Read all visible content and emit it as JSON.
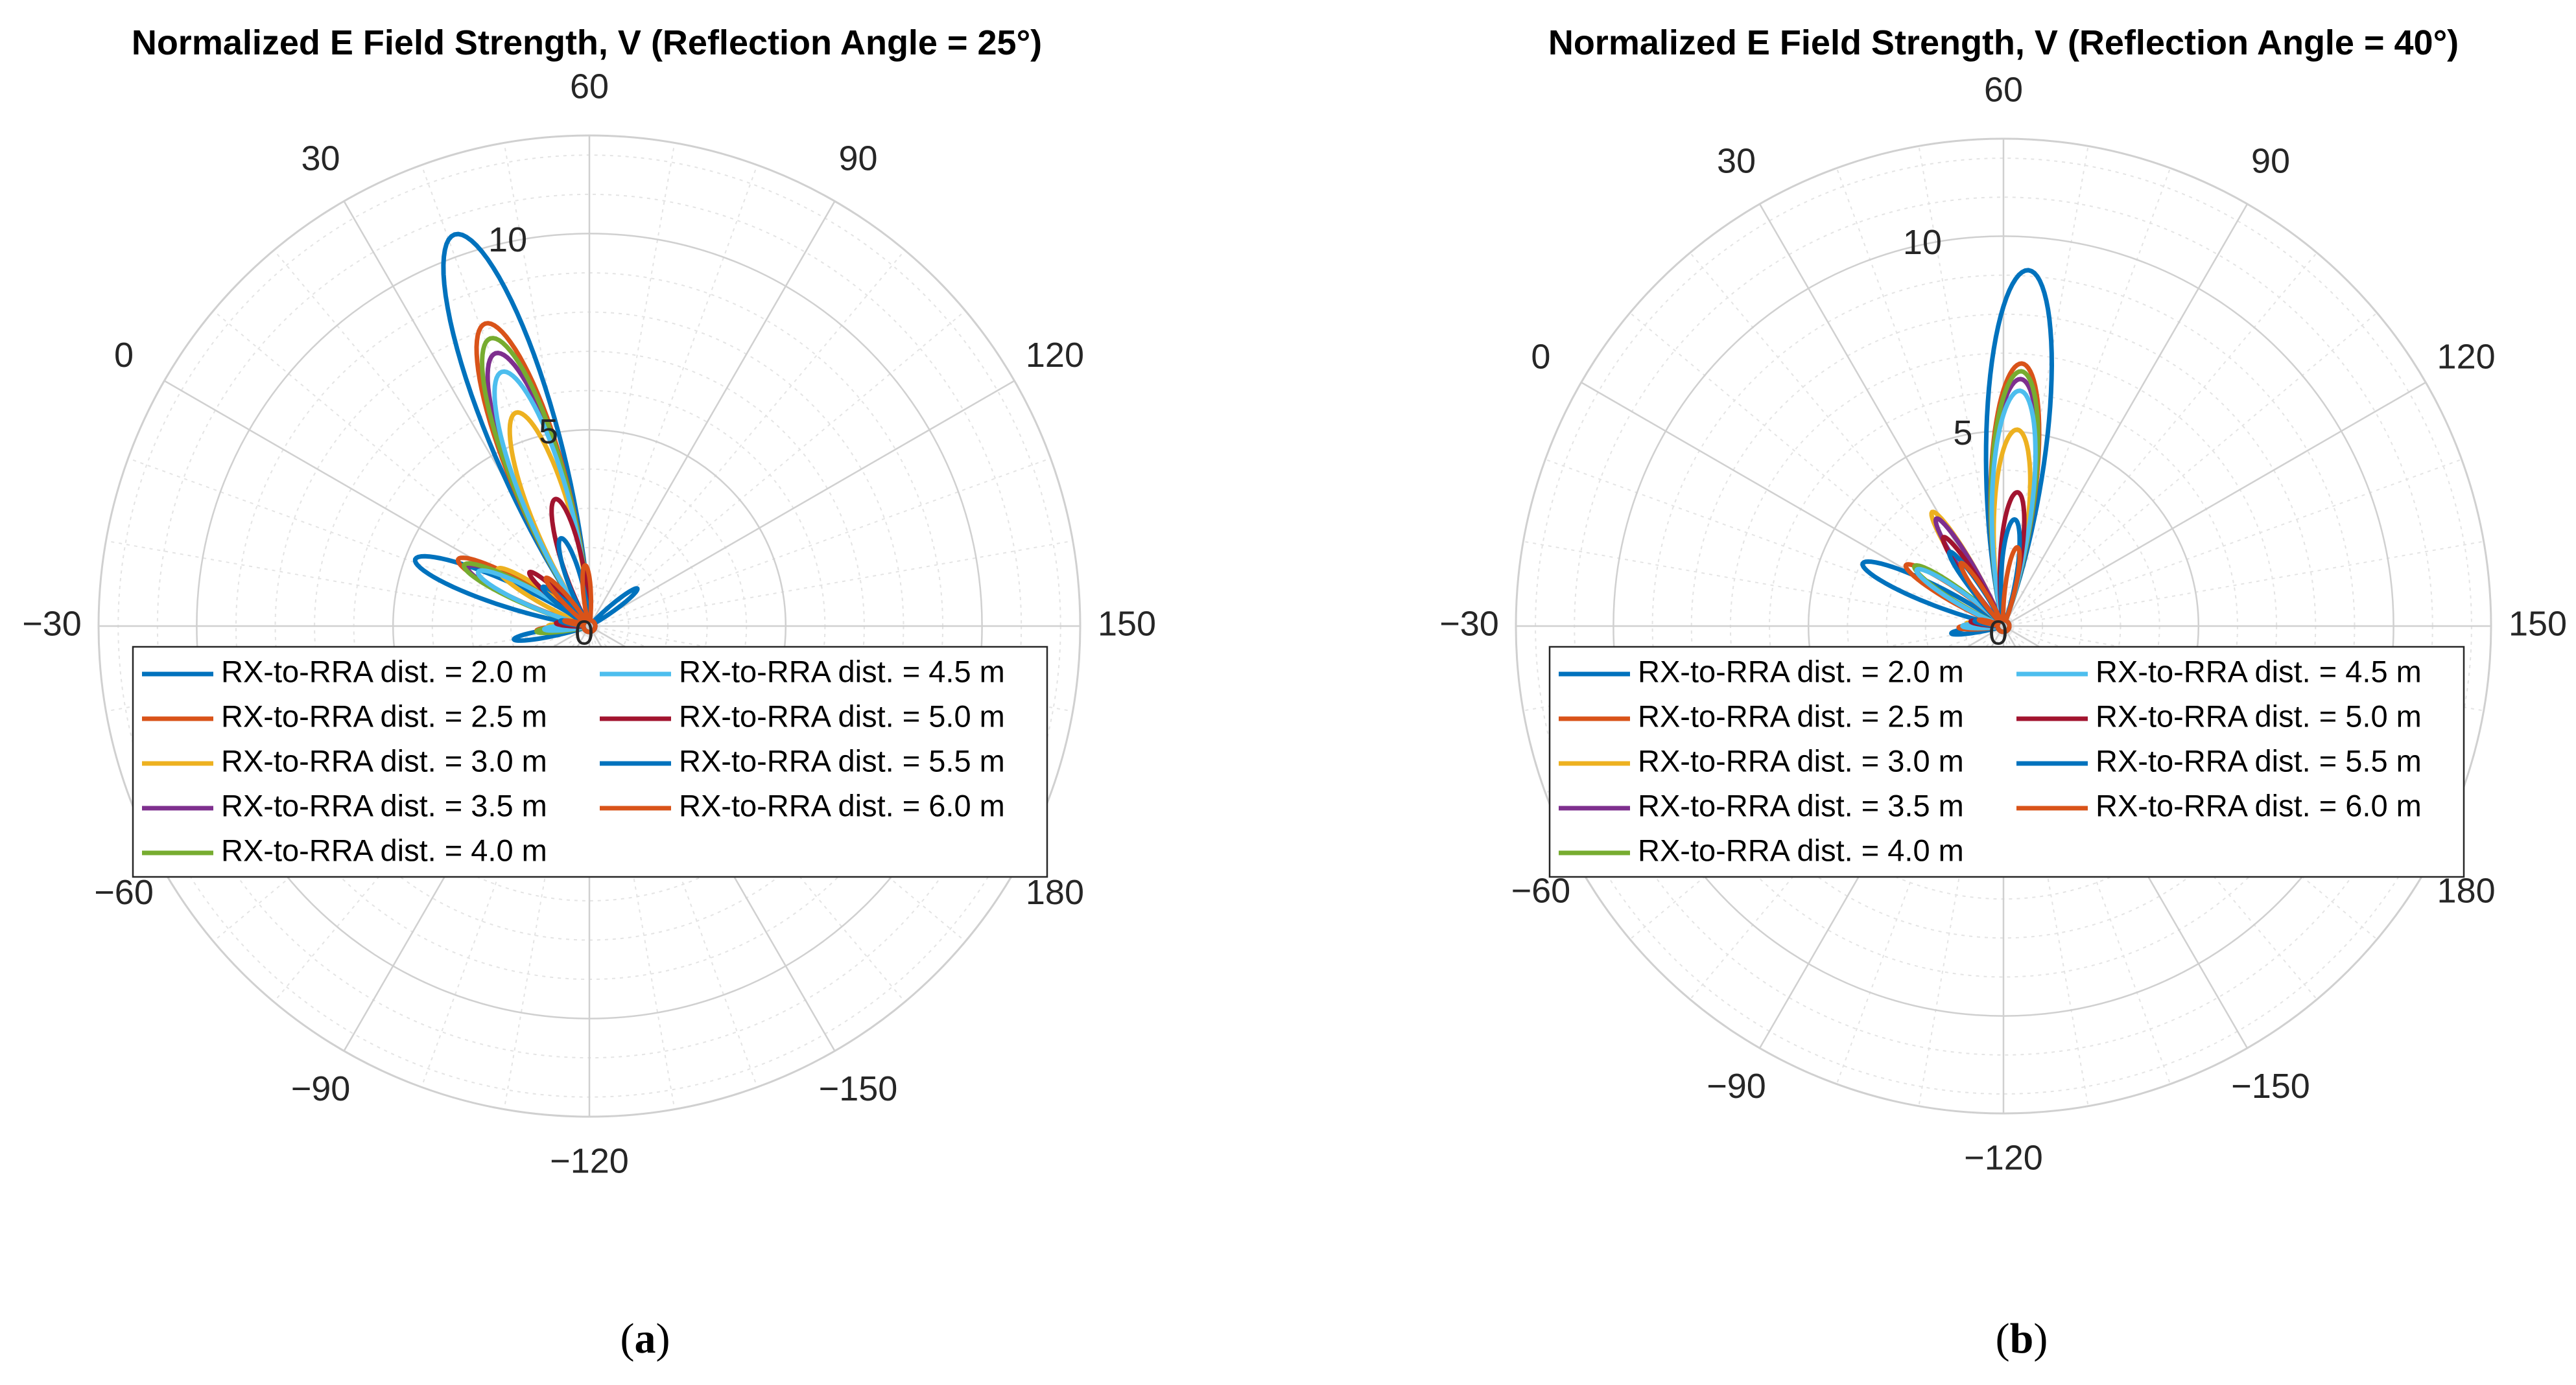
{
  "figure": {
    "panels": [
      {
        "caption_letter": "a"
      },
      {
        "caption_letter": "b"
      }
    ]
  },
  "chart_data": [
    {
      "type": "polar-line",
      "title": "Normalized E Field Strength, V (Reflection Angle = 25°)",
      "angle_ticks": [
        30,
        60,
        90,
        120,
        150,
        180,
        -150,
        -120,
        -90,
        -60,
        -30,
        0
      ],
      "r_ticks": [
        0,
        5,
        10
      ],
      "r_lim": [
        0,
        12.5
      ],
      "angle_direction": "clockwise",
      "zero_direction": "up-left",
      "legend_position": "center",
      "series": [
        {
          "name": "RX-to-RRA dist. = 2.0 m",
          "color": "#0072BD",
          "lobes": [
            {
              "angle": 41,
              "peak": 10.4,
              "width": 19
            },
            {
              "angle": -9,
              "peak": 4.6,
              "width": 15
            },
            {
              "angle": -40,
              "peak": 1.8,
              "width": 10
            },
            {
              "angle": 112,
              "peak": 1.4,
              "width": 11
            }
          ]
        },
        {
          "name": "RX-to-RRA dist. = 2.5 m",
          "color": "#D95319",
          "lobes": [
            {
              "angle": 41,
              "peak": 8.0,
              "width": 19
            },
            {
              "angle": -3,
              "peak": 3.6,
              "width": 14
            },
            {
              "angle": -35,
              "peak": 1.2,
              "width": 10
            }
          ]
        },
        {
          "name": "RX-to-RRA dist. = 3.0 m",
          "color": "#EDB120",
          "lobes": [
            {
              "angle": 41,
              "peak": 5.6,
              "width": 19
            },
            {
              "angle": 2,
              "peak": 2.6,
              "width": 13
            },
            {
              "angle": -30,
              "peak": 0.9,
              "width": 10
            }
          ]
        },
        {
          "name": "RX-to-RRA dist. = 3.5 m",
          "color": "#7E2F8E",
          "lobes": [
            {
              "angle": 41,
              "peak": 7.2,
              "width": 19
            },
            {
              "angle": -4,
              "peak": 3.3,
              "width": 14
            },
            {
              "angle": -36,
              "peak": 1.1,
              "width": 10
            }
          ]
        },
        {
          "name": "RX-to-RRA dist. = 4.0 m",
          "color": "#77AC30",
          "lobes": [
            {
              "angle": 41,
              "peak": 7.6,
              "width": 19
            },
            {
              "angle": -4,
              "peak": 3.4,
              "width": 14
            },
            {
              "angle": -36,
              "peak": 1.2,
              "width": 10
            }
          ]
        },
        {
          "name": "RX-to-RRA dist. = 4.5 m",
          "color": "#4DBEEE",
          "lobes": [
            {
              "angle": 41,
              "peak": 6.7,
              "width": 19
            },
            {
              "angle": -4,
              "peak": 3.0,
              "width": 14
            },
            {
              "angle": -34,
              "peak": 1.0,
              "width": 10
            }
          ]
        },
        {
          "name": "RX-to-RRA dist. = 5.0 m",
          "color": "#A2142F",
          "lobes": [
            {
              "angle": 45,
              "peak": 3.2,
              "width": 17
            },
            {
              "angle": 12,
              "peak": 1.9,
              "width": 12
            },
            {
              "angle": -25,
              "peak": 0.7,
              "width": 10
            }
          ]
        },
        {
          "name": "RX-to-RRA dist. = 5.5 m",
          "color": "#0072BD",
          "lobes": [
            {
              "angle": 42,
              "peak": 2.2,
              "width": 16
            },
            {
              "angle": 10,
              "peak": 1.4,
              "width": 12
            },
            {
              "angle": -20,
              "peak": 0.6,
              "width": 10
            }
          ]
        },
        {
          "name": "RX-to-RRA dist. = 6.0 m",
          "color": "#D95319",
          "lobes": [
            {
              "angle": 56,
              "peak": 1.4,
              "width": 13
            },
            {
              "angle": 18,
              "peak": 1.5,
              "width": 12
            },
            {
              "angle": -18,
              "peak": 0.5,
              "width": 9
            }
          ]
        }
      ]
    },
    {
      "type": "polar-line",
      "title": "Normalized E Field Strength, V (Reflection Angle = 40°)",
      "angle_ticks": [
        30,
        60,
        90,
        120,
        150,
        180,
        -150,
        -120,
        -90,
        -60,
        -30,
        0
      ],
      "r_ticks": [
        0,
        5,
        10
      ],
      "r_lim": [
        0,
        12.5
      ],
      "angle_direction": "clockwise",
      "zero_direction": "up-left",
      "legend_position": "center",
      "series": [
        {
          "name": "RX-to-RRA dist. = 2.0 m",
          "color": "#0072BD",
          "lobes": [
            {
              "angle": 64,
              "peak": 9.0,
              "width": 19
            },
            {
              "angle": -6,
              "peak": 3.8,
              "width": 14
            },
            {
              "angle": -38,
              "peak": 1.2,
              "width": 10
            }
          ]
        },
        {
          "name": "RX-to-RRA dist. = 2.5 m",
          "color": "#D95319",
          "lobes": [
            {
              "angle": 64,
              "peak": 6.6,
              "width": 19
            },
            {
              "angle": 2,
              "peak": 2.8,
              "width": 13
            },
            {
              "angle": -32,
              "peak": 1.0,
              "width": 10
            }
          ]
        },
        {
          "name": "RX-to-RRA dist. = 3.0 m",
          "color": "#EDB120",
          "lobes": [
            {
              "angle": 64,
              "peak": 4.9,
              "width": 19
            },
            {
              "angle": 28,
              "peak": 3.3,
              "width": 11
            },
            {
              "angle": -26,
              "peak": 0.8,
              "width": 10
            }
          ]
        },
        {
          "name": "RX-to-RRA dist. = 3.5 m",
          "color": "#7E2F8E",
          "lobes": [
            {
              "angle": 64,
              "peak": 6.2,
              "width": 19
            },
            {
              "angle": 28,
              "peak": 3.1,
              "width": 11
            },
            {
              "angle": -30,
              "peak": 0.9,
              "width": 10
            }
          ]
        },
        {
          "name": "RX-to-RRA dist. = 4.0 m",
          "color": "#77AC30",
          "lobes": [
            {
              "angle": 64,
              "peak": 6.4,
              "width": 19
            },
            {
              "angle": 4,
              "peak": 2.6,
              "width": 13
            },
            {
              "angle": -30,
              "peak": 0.9,
              "width": 10
            }
          ]
        },
        {
          "name": "RX-to-RRA dist. = 4.5 m",
          "color": "#4DBEEE",
          "lobes": [
            {
              "angle": 64,
              "peak": 5.9,
              "width": 19
            },
            {
              "angle": 3,
              "peak": 2.5,
              "width": 13
            },
            {
              "angle": -30,
              "peak": 0.9,
              "width": 10
            }
          ]
        },
        {
          "name": "RX-to-RRA dist. = 5.0 m",
          "color": "#A2142F",
          "lobes": [
            {
              "angle": 66,
              "peak": 3.3,
              "width": 17
            },
            {
              "angle": 26,
              "peak": 2.6,
              "width": 11
            },
            {
              "angle": -22,
              "peak": 0.7,
              "width": 10
            }
          ]
        },
        {
          "name": "RX-to-RRA dist. = 5.5 m",
          "color": "#0072BD",
          "lobes": [
            {
              "angle": 66,
              "peak": 2.6,
              "width": 16
            },
            {
              "angle": 24,
              "peak": 2.2,
              "width": 11
            },
            {
              "angle": -20,
              "peak": 0.6,
              "width": 10
            }
          ]
        },
        {
          "name": "RX-to-RRA dist. = 6.0 m",
          "color": "#D95319",
          "lobes": [
            {
              "angle": 70,
              "peak": 1.9,
              "width": 14
            },
            {
              "angle": 26,
              "peak": 1.8,
              "width": 11
            },
            {
              "angle": -16,
              "peak": 0.5,
              "width": 9
            }
          ]
        }
      ]
    }
  ]
}
